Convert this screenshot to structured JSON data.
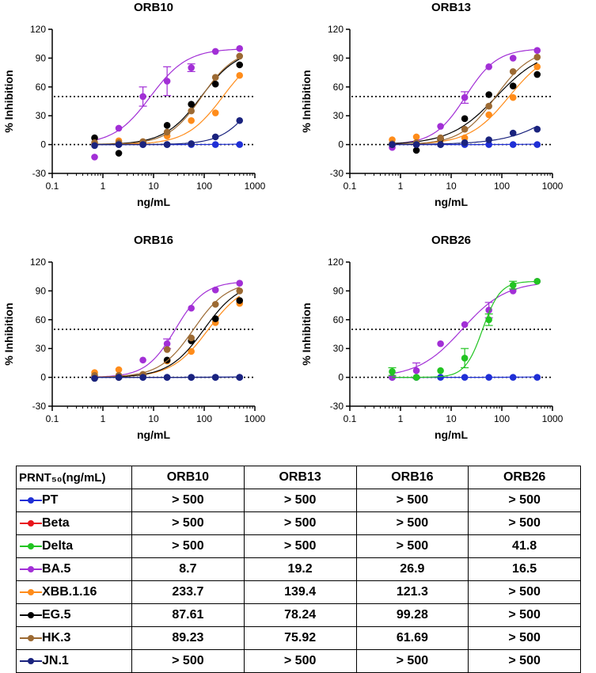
{
  "chart_data": [
    {
      "type": "scatter",
      "title": "ORB10",
      "xlabel": "ng/mL",
      "ylabel": "% Inhibition",
      "xscale": "log",
      "xlim": [
        0.1,
        1000
      ],
      "ylim": [
        -30,
        120
      ],
      "xticks": [
        "0.1",
        "1",
        "10",
        "100",
        "1000"
      ],
      "yticks": [
        "-30",
        "0",
        "30",
        "60",
        "90",
        "120"
      ],
      "reference_line_y": 50,
      "x": [
        0.686,
        2.058,
        6.173,
        18.52,
        55.56,
        166.7,
        500
      ],
      "series": [
        {
          "name": "PT",
          "color": "#1f2fd6",
          "values": [
            0,
            0,
            0,
            0,
            0,
            0,
            0
          ],
          "curve": {
            "ec50": 100000,
            "hill": 1,
            "top": 100
          }
        },
        {
          "name": "BA.5",
          "color": "#a22fd6",
          "values": [
            -13,
            17,
            50,
            66,
            80,
            97,
            100
          ],
          "errors": [
            3,
            3,
            10,
            15,
            4,
            1,
            1
          ],
          "curve": {
            "ec50": 8.7,
            "hill": 1.2,
            "top": 100
          }
        },
        {
          "name": "XBB.1.16",
          "color": "#ff8c1a",
          "values": [
            0,
            4,
            3,
            9,
            25,
            33,
            72
          ],
          "curve": {
            "ec50": 233.7,
            "hill": 1.2,
            "top": 100
          }
        },
        {
          "name": "EG.5",
          "color": "#000000",
          "values": [
            7,
            -9,
            2,
            20,
            42,
            63,
            83
          ],
          "curve": {
            "ec50": 87.61,
            "hill": 1.2,
            "top": 100
          }
        },
        {
          "name": "HK.3",
          "color": "#9c6a33",
          "values": [
            2,
            2,
            3,
            13,
            35,
            70,
            92
          ],
          "curve": {
            "ec50": 89.23,
            "hill": 1.3,
            "top": 100
          }
        },
        {
          "name": "JN.1",
          "color": "#1a237e",
          "values": [
            -1,
            0,
            0,
            0,
            1,
            8,
            25
          ],
          "curve": {
            "ec50": 1200,
            "hill": 1.3,
            "top": 100
          }
        }
      ]
    },
    {
      "type": "scatter",
      "title": "ORB13",
      "xlabel": "ng/mL",
      "ylabel": "% Inhibition",
      "xscale": "log",
      "xlim": [
        0.1,
        1000
      ],
      "ylim": [
        -30,
        120
      ],
      "xticks": [
        "0.1",
        "1",
        "10",
        "100",
        "1000"
      ],
      "yticks": [
        "-30",
        "0",
        "30",
        "60",
        "90",
        "120"
      ],
      "reference_line_y": 50,
      "x": [
        0.686,
        2.058,
        6.173,
        18.52,
        55.56,
        166.7,
        500
      ],
      "series": [
        {
          "name": "PT",
          "color": "#1f2fd6",
          "values": [
            0,
            0,
            0,
            0,
            0,
            0,
            0
          ],
          "curve": {
            "ec50": 100000,
            "hill": 1,
            "top": 100
          }
        },
        {
          "name": "BA.5",
          "color": "#a22fd6",
          "values": [
            -3,
            0,
            19,
            49,
            81,
            90,
            98
          ],
          "errors": [
            2,
            2,
            3,
            6,
            2,
            2,
            1
          ],
          "curve": {
            "ec50": 19.2,
            "hill": 1.4,
            "top": 100
          }
        },
        {
          "name": "XBB.1.16",
          "color": "#ff8c1a",
          "values": [
            5,
            8,
            5,
            7,
            31,
            49,
            81
          ],
          "curve": {
            "ec50": 139.4,
            "hill": 1.1,
            "top": 100
          }
        },
        {
          "name": "EG.5",
          "color": "#000000",
          "values": [
            0,
            -6,
            6,
            27,
            52,
            61,
            73
          ],
          "curve": {
            "ec50": 78.24,
            "hill": 0.95,
            "top": 100
          }
        },
        {
          "name": "HK.3",
          "color": "#9c6a33",
          "values": [
            1,
            2,
            7,
            16,
            40,
            76,
            91
          ],
          "curve": {
            "ec50": 75.92,
            "hill": 1.25,
            "top": 100
          }
        },
        {
          "name": "JN.1",
          "color": "#1a237e",
          "values": [
            0,
            0,
            0,
            2,
            5,
            12,
            16
          ],
          "curve": {
            "ec50": 3000,
            "hill": 0.8,
            "top": 100
          }
        }
      ]
    },
    {
      "type": "scatter",
      "title": "ORB16",
      "xlabel": "ng/mL",
      "ylabel": "% Inhibition",
      "xscale": "log",
      "xlim": [
        0.1,
        1000
      ],
      "ylim": [
        -30,
        120
      ],
      "xticks": [
        "0.1",
        "1",
        "10",
        "100",
        "1000"
      ],
      "yticks": [
        "-30",
        "0",
        "30",
        "60",
        "90",
        "120"
      ],
      "reference_line_y": 50,
      "x": [
        0.686,
        2.058,
        6.173,
        18.52,
        55.56,
        166.7,
        500
      ],
      "series": [
        {
          "name": "PT",
          "color": "#1f2fd6",
          "values": [
            0,
            0,
            0,
            0,
            0,
            0,
            0
          ],
          "curve": {
            "ec50": 100000,
            "hill": 1,
            "top": 100
          }
        },
        {
          "name": "BA.5",
          "color": "#a22fd6",
          "values": [
            0,
            1,
            18,
            35,
            72,
            91,
            98
          ],
          "errors": [
            1,
            1,
            3,
            5,
            2,
            1,
            1
          ],
          "curve": {
            "ec50": 26.9,
            "hill": 1.5,
            "top": 100
          }
        },
        {
          "name": "XBB.1.16",
          "color": "#ff8c1a",
          "values": [
            5,
            8,
            3,
            17,
            27,
            57,
            77
          ],
          "curve": {
            "ec50": 121.3,
            "hill": 1.2,
            "top": 100
          }
        },
        {
          "name": "EG.5",
          "color": "#000000",
          "values": [
            -1,
            0,
            2,
            18,
            38,
            61,
            80
          ],
          "curve": {
            "ec50": 99.28,
            "hill": 1.25,
            "top": 100
          }
        },
        {
          "name": "HK.3",
          "color": "#9c6a33",
          "values": [
            2,
            2,
            3,
            29,
            41,
            76,
            90
          ],
          "curve": {
            "ec50": 61.69,
            "hill": 1.3,
            "top": 100
          }
        },
        {
          "name": "JN.1",
          "color": "#1a237e",
          "values": [
            -1,
            0,
            0,
            0,
            0,
            0,
            0
          ],
          "curve": {
            "ec50": 100000,
            "hill": 1,
            "top": 100
          }
        }
      ]
    },
    {
      "type": "scatter",
      "title": "ORB26",
      "xlabel": "ng/mL",
      "ylabel": "% Inhibition",
      "xscale": "log",
      "xlim": [
        0.1,
        1000
      ],
      "ylim": [
        -30,
        120
      ],
      "xticks": [
        "0.1",
        "1",
        "10",
        "100",
        "1000"
      ],
      "yticks": [
        "-30",
        "0",
        "30",
        "60",
        "90",
        "120"
      ],
      "reference_line_y": 50,
      "x": [
        0.686,
        2.058,
        6.173,
        18.52,
        55.56,
        166.7,
        500
      ],
      "series": [
        {
          "name": "PT",
          "color": "#1f2fd6",
          "values": [
            0,
            0,
            0,
            0,
            0,
            0,
            0
          ],
          "curve": {
            "ec50": 100000,
            "hill": 1,
            "top": 100
          }
        },
        {
          "name": "BA.5",
          "color": "#a22fd6",
          "values": [
            0,
            7,
            35,
            55,
            70,
            90,
            100
          ],
          "errors": [
            2,
            8,
            2,
            2,
            8,
            2,
            1
          ],
          "curve": {
            "ec50": 16.5,
            "hill": 1.0,
            "top": 100
          }
        },
        {
          "name": "Delta",
          "color": "#22c422",
          "values": [
            6,
            0,
            7,
            20,
            60,
            96,
            100
          ],
          "errors": [
            4,
            2,
            2,
            10,
            6,
            4,
            1
          ],
          "curve": {
            "ec50": 41.8,
            "hill": 2.5,
            "top": 100
          }
        }
      ]
    }
  ],
  "table": {
    "header": [
      "PRNT₅₀(ng/mL)",
      "ORB10",
      "ORB13",
      "ORB16",
      "ORB26"
    ],
    "rows": [
      {
        "variant": "PT",
        "color": "#1f2fd6",
        "values": [
          "> 500",
          "> 500",
          "> 500",
          "> 500"
        ]
      },
      {
        "variant": "Beta",
        "color": "#e8141b",
        "values": [
          "> 500",
          "> 500",
          "> 500",
          "> 500"
        ]
      },
      {
        "variant": "Delta",
        "color": "#22c422",
        "values": [
          "> 500",
          "> 500",
          "> 500",
          "41.8"
        ]
      },
      {
        "variant": "BA.5",
        "color": "#a22fd6",
        "values": [
          "8.7",
          "19.2",
          "26.9",
          "16.5"
        ]
      },
      {
        "variant": "XBB.1.16",
        "color": "#ff8c1a",
        "values": [
          "233.7",
          "139.4",
          "121.3",
          "> 500"
        ]
      },
      {
        "variant": "EG.5",
        "color": "#000000",
        "values": [
          "87.61",
          "78.24",
          "99.28",
          "> 500"
        ]
      },
      {
        "variant": "HK.3",
        "color": "#9c6a33",
        "values": [
          "89.23",
          "75.92",
          "61.69",
          "> 500"
        ]
      },
      {
        "variant": "JN.1",
        "color": "#1a237e",
        "values": [
          "> 500",
          "> 500",
          "> 500",
          "> 500"
        ]
      }
    ]
  }
}
